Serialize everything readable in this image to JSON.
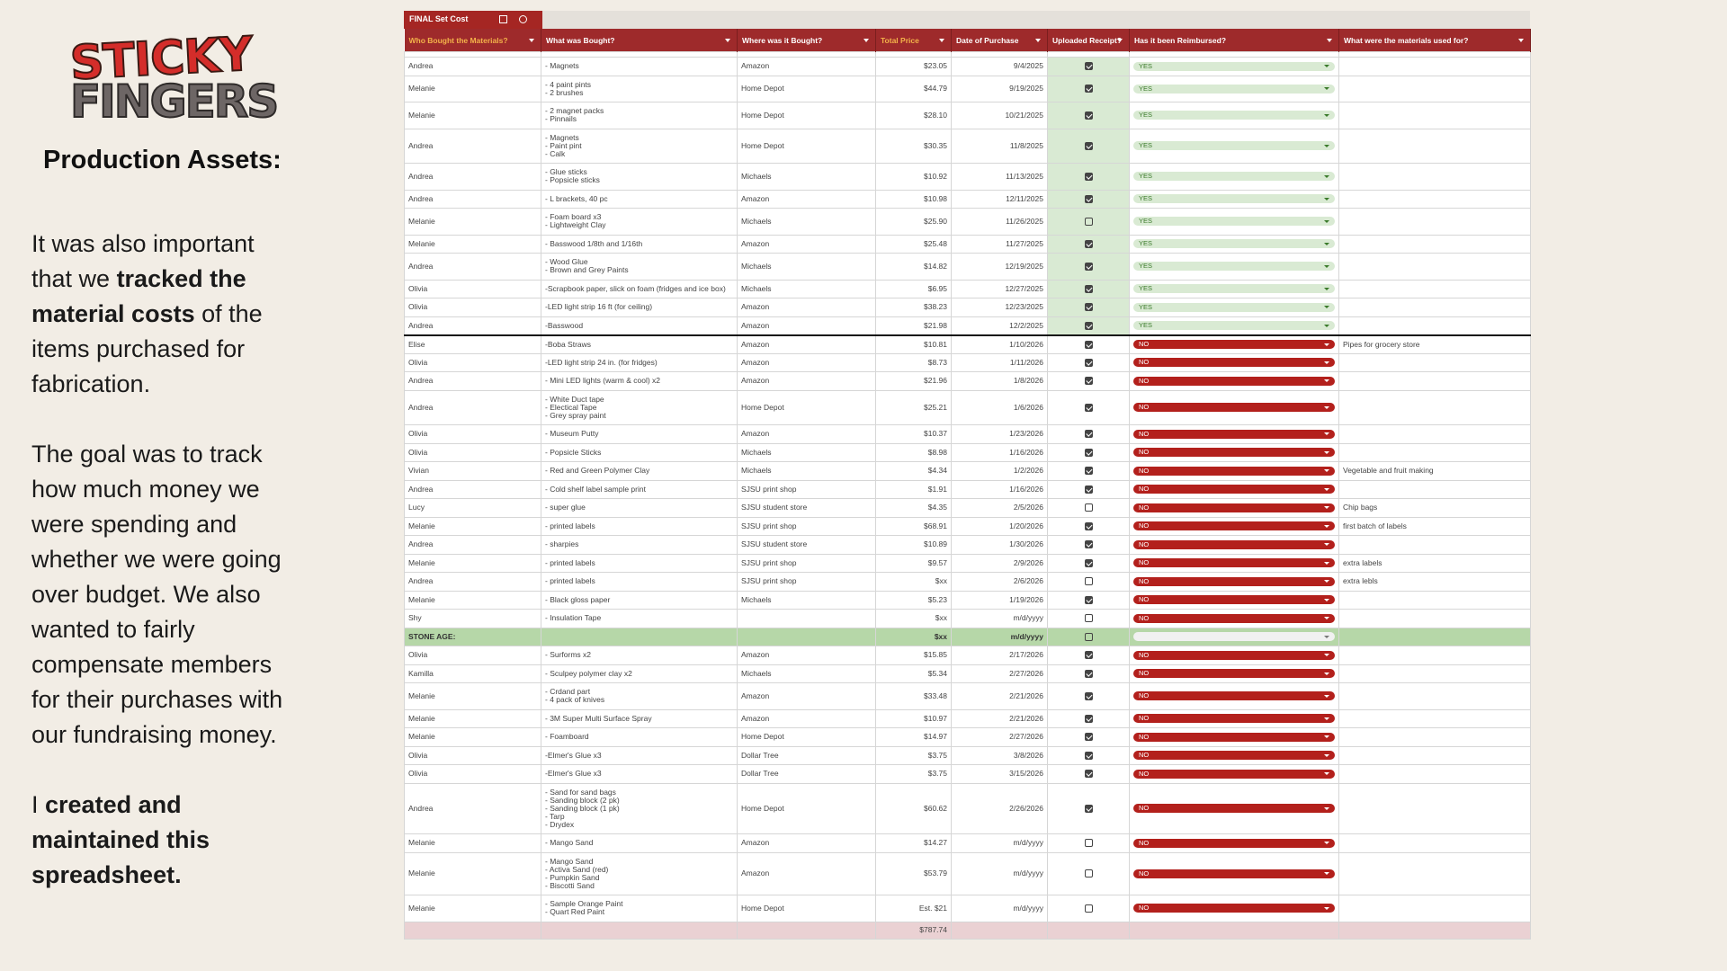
{
  "logo": {
    "line1": "STICKY",
    "line2": "FINGERS"
  },
  "heading": "Production Assets:",
  "paragraphs": [
    [
      {
        "text": "It was also important that we ",
        "bold": false
      },
      {
        "text": "tracked the material costs",
        "bold": true
      },
      {
        "text": " of the items purchased for fabrication.",
        "bold": false
      }
    ],
    [
      {
        "text": "The goal was to track how much money we were spending and whether we were going over budget. We also wanted to fairly compensate members for their purchases with our fundraising money.",
        "bold": false
      }
    ],
    [
      {
        "text": "I ",
        "bold": false
      },
      {
        "text": "created and maintained this spreadsheet.",
        "bold": true
      }
    ]
  ],
  "sheet": {
    "tab": "FINAL Set Cost",
    "columns": [
      "Who Bought the Materials?",
      "What was Bought?",
      "Where was it Bought?",
      "Total Price",
      "Date of Purchase",
      "Uploaded Receipt?",
      "Has it been Reimbursed?",
      "What were the materials used for?"
    ],
    "rows": [
      {
        "who": "Andrea",
        "items": [
          "- Magnets"
        ],
        "where": "Amazon",
        "price": "$23.05",
        "date": "9/4/2025",
        "receipt": true,
        "reimbursed": "YES",
        "use": null
      },
      {
        "who": "Melanie",
        "items": [
          "- 4 paint pints",
          "- 2 brushes"
        ],
        "where": "Home Depot",
        "price": "$44.79",
        "date": "9/19/2025",
        "receipt": true,
        "reimbursed": "YES",
        "use": null
      },
      {
        "who": "Melanie",
        "items": [
          "- 2 magnet packs",
          "- Pinnails"
        ],
        "where": "Home Depot",
        "price": "$28.10",
        "date": "10/21/2025",
        "receipt": true,
        "reimbursed": "YES",
        "use": null
      },
      {
        "who": "Andrea",
        "items": [
          "- Magnets",
          "- Paint pint",
          "- Calk"
        ],
        "where": "Home Depot",
        "price": "$30.35",
        "date": "11/8/2025",
        "receipt": true,
        "reimbursed": "YES",
        "use": null
      },
      {
        "who": "Andrea",
        "items": [
          "- Glue sticks",
          "- Popsicle sticks"
        ],
        "where": "Michaels",
        "price": "$10.92",
        "date": "11/13/2025",
        "receipt": true,
        "reimbursed": "YES",
        "use": null
      },
      {
        "who": "Andrea",
        "items": [
          "- L brackets, 40 pc"
        ],
        "where": "Amazon",
        "price": "$10.98",
        "date": "12/11/2025",
        "receipt": true,
        "reimbursed": "YES",
        "use": null
      },
      {
        "who": "Melanie",
        "items": [
          "- Foam board x3",
          "- Lightweight Clay"
        ],
        "where": "Michaels",
        "price": "$25.90",
        "date": "11/26/2025",
        "receipt": false,
        "reimbursed": "YES",
        "use": null
      },
      {
        "who": "Melanie",
        "items": [
          "- Basswood 1/8th and 1/16th"
        ],
        "where": "Amazon",
        "price": "$25.48",
        "date": "11/27/2025",
        "receipt": true,
        "reimbursed": "YES",
        "use": null
      },
      {
        "who": "Andrea",
        "items": [
          "- Wood Glue",
          "- Brown and Grey Paints"
        ],
        "where": "Michaels",
        "price": "$14.82",
        "date": "12/19/2025",
        "receipt": true,
        "reimbursed": "YES",
        "use": null
      },
      {
        "who": "Olivia",
        "items": [
          "-Scrapbook paper, slick on foam (fridges and ice box)"
        ],
        "where": "Michaels",
        "price": "$6.95",
        "date": "12/27/2025",
        "receipt": true,
        "reimbursed": "YES",
        "use": null
      },
      {
        "who": "Olivia",
        "items": [
          "-LED light strip 16 ft (for ceiling)"
        ],
        "where": "Amazon",
        "price": "$38.23",
        "date": "12/23/2025",
        "receipt": true,
        "reimbursed": "YES",
        "use": null
      },
      {
        "who": "Andrea",
        "items": [
          "-Basswood"
        ],
        "where": "Amazon",
        "price": "$21.98",
        "date": "12/2/2025",
        "receipt": true,
        "reimbursed": "YES",
        "use": null
      },
      {
        "who": "Elise",
        "items": [
          "-Boba Straws"
        ],
        "where": "Amazon",
        "price": "$10.81",
        "date": "1/10/2026",
        "receipt": true,
        "reimbursed": "NO",
        "use": "Pipes for grocery store"
      },
      {
        "who": "Olivia",
        "items": [
          "-LED light strip 24 in. (for fridges)"
        ],
        "where": "Amazon",
        "price": "$8.73",
        "date": "1/11/2026",
        "receipt": true,
        "reimbursed": "NO",
        "use": null
      },
      {
        "who": "Andrea",
        "items": [
          "- Mini LED lights (warm & cool) x2"
        ],
        "where": "Amazon",
        "price": "$21.96",
        "date": "1/8/2026",
        "receipt": true,
        "reimbursed": "NO",
        "use": null
      },
      {
        "who": "Andrea",
        "items": [
          "- White Duct tape",
          "- Electical Tape",
          "- Grey spray paint"
        ],
        "where": "Home Depot",
        "price": "$25.21",
        "date": "1/6/2026",
        "receipt": true,
        "reimbursed": "NO",
        "use": null
      },
      {
        "who": "Olivia",
        "items": [
          "- Museum Putty"
        ],
        "where": "Amazon",
        "price": "$10.37",
        "date": "1/23/2026",
        "receipt": true,
        "reimbursed": "NO",
        "use": null
      },
      {
        "who": "Olivia",
        "items": [
          "- Popsicle Sticks"
        ],
        "where": "Michaels",
        "price": "$8.98",
        "date": "1/16/2026",
        "receipt": true,
        "reimbursed": "NO",
        "use": null
      },
      {
        "who": "Vivian",
        "items": [
          "- Red and Green Polymer Clay"
        ],
        "where": "Michaels",
        "price": "$4.34",
        "date": "1/2/2026",
        "receipt": true,
        "reimbursed": "NO",
        "use": "Vegetable and fruit making"
      },
      {
        "who": "Andrea",
        "items": [
          "- Cold shelf label sample print"
        ],
        "where": "SJSU print shop",
        "price": "$1.91",
        "date": "1/16/2026",
        "receipt": true,
        "reimbursed": "NO",
        "use": null
      },
      {
        "who": "Lucy",
        "items": [
          "- super glue"
        ],
        "where": "SJSU student store",
        "price": "$4.35",
        "date": "2/5/2026",
        "receipt": false,
        "reimbursed": "NO",
        "use": "Chip bags"
      },
      {
        "who": "Melanie",
        "items": [
          "- printed labels"
        ],
        "where": "SJSU print shop",
        "price": "$68.91",
        "date": "1/20/2026",
        "receipt": true,
        "reimbursed": "NO",
        "use": "first batch of labels"
      },
      {
        "who": "Andrea",
        "items": [
          "- sharpies"
        ],
        "where": "SJSU student store",
        "price": "$10.89",
        "date": "1/30/2026",
        "receipt": true,
        "reimbursed": "NO",
        "use": null
      },
      {
        "who": "Melanie",
        "items": [
          "- printed labels"
        ],
        "where": "SJSU print shop",
        "price": "$9.57",
        "date": "2/9/2026",
        "receipt": true,
        "reimbursed": "NO",
        "use": "extra labels"
      },
      {
        "who": "Andrea",
        "items": [
          "- printed labels"
        ],
        "where": "SJSU print shop",
        "price": "$xx",
        "date": "2/6/2026",
        "receipt": false,
        "reimbursed": "NO",
        "use": "extra lebls"
      },
      {
        "who": "Melanie",
        "items": [
          "- Black gloss paper"
        ],
        "where": "Michaels",
        "price": "$5.23",
        "date": "1/19/2026",
        "receipt": true,
        "reimbursed": "NO",
        "use": null
      },
      {
        "who": "Shy",
        "items": [
          "- Insulation Tape"
        ],
        "where": null,
        "price": "$xx",
        "date": "m/d/yyyy",
        "receipt": false,
        "reimbursed": "NO",
        "use": null
      },
      {
        "section": "STONE AGE:",
        "price": "$xx",
        "date": "m/d/yyyy",
        "receipt": false,
        "reimbursed": null
      },
      {
        "who": "Olivia",
        "items": [
          "- Surforms x2"
        ],
        "where": "Amazon",
        "price": "$15.85",
        "date": "2/17/2026",
        "receipt": true,
        "reimbursed": "NO",
        "use": null
      },
      {
        "who": "Kamilla",
        "items": [
          "- Sculpey polymer clay x2"
        ],
        "where": "Michaels",
        "price": "$5.34",
        "date": "2/27/2026",
        "receipt": true,
        "reimbursed": "NO",
        "use": null
      },
      {
        "who": "Melanie",
        "items": [
          "- Crdand part",
          "- 4 pack of knives"
        ],
        "where": "Amazon",
        "price": "$33.48",
        "date": "2/21/2026",
        "receipt": true,
        "reimbursed": "NO",
        "use": null
      },
      {
        "who": "Melanie",
        "items": [
          "- 3M Super Multi Surface Spray"
        ],
        "where": "Amazon",
        "price": "$10.97",
        "date": "2/21/2026",
        "receipt": true,
        "reimbursed": "NO",
        "use": null
      },
      {
        "who": "Melanie",
        "items": [
          "- Foamboard"
        ],
        "where": "Home Depot",
        "price": "$14.97",
        "date": "2/27/2026",
        "receipt": true,
        "reimbursed": "NO",
        "use": null
      },
      {
        "who": "Olivia",
        "items": [
          "-Elmer's Glue x3"
        ],
        "where": "Dollar Tree",
        "price": "$3.75",
        "date": "3/8/2026",
        "receipt": true,
        "reimbursed": "NO",
        "use": null
      },
      {
        "who": "Olivia",
        "items": [
          "-Elmer's Glue x3"
        ],
        "where": "Dollar Tree",
        "price": "$3.75",
        "date": "3/15/2026",
        "receipt": true,
        "reimbursed": "NO",
        "use": null
      },
      {
        "who": "Andrea",
        "items": [
          "- Sand for sand bags",
          "- Sanding block (2 pk)",
          "- Sanding block (1 pk)",
          "- Tarp",
          "- Drydex"
        ],
        "where": "Home Depot",
        "price": "$60.62",
        "date": "2/26/2026",
        "receipt": true,
        "reimbursed": "NO",
        "use": null
      },
      {
        "who": "Melanie",
        "items": [
          "- Mango Sand"
        ],
        "where": "Amazon",
        "price": "$14.27",
        "date": "m/d/yyyy",
        "receipt": false,
        "reimbursed": "NO",
        "use": null
      },
      {
        "who": "Melanie",
        "items": [
          "- Mango Sand",
          "- Activa Sand (red)",
          "- Pumpkin Sand",
          "- Biscotti Sand"
        ],
        "where": "Amazon",
        "price": "$53.79",
        "date": "m/d/yyyy",
        "receipt": false,
        "reimbursed": "NO",
        "use": null
      },
      {
        "who": "Melanie",
        "items": [
          "- Sample Orange Paint",
          "- Quart Red Paint"
        ],
        "where": "Home Depot",
        "price": "Est. $21",
        "date": "m/d/yyyy",
        "receipt": false,
        "reimbursed": "NO",
        "use": null
      }
    ],
    "total": "$787.74"
  }
}
